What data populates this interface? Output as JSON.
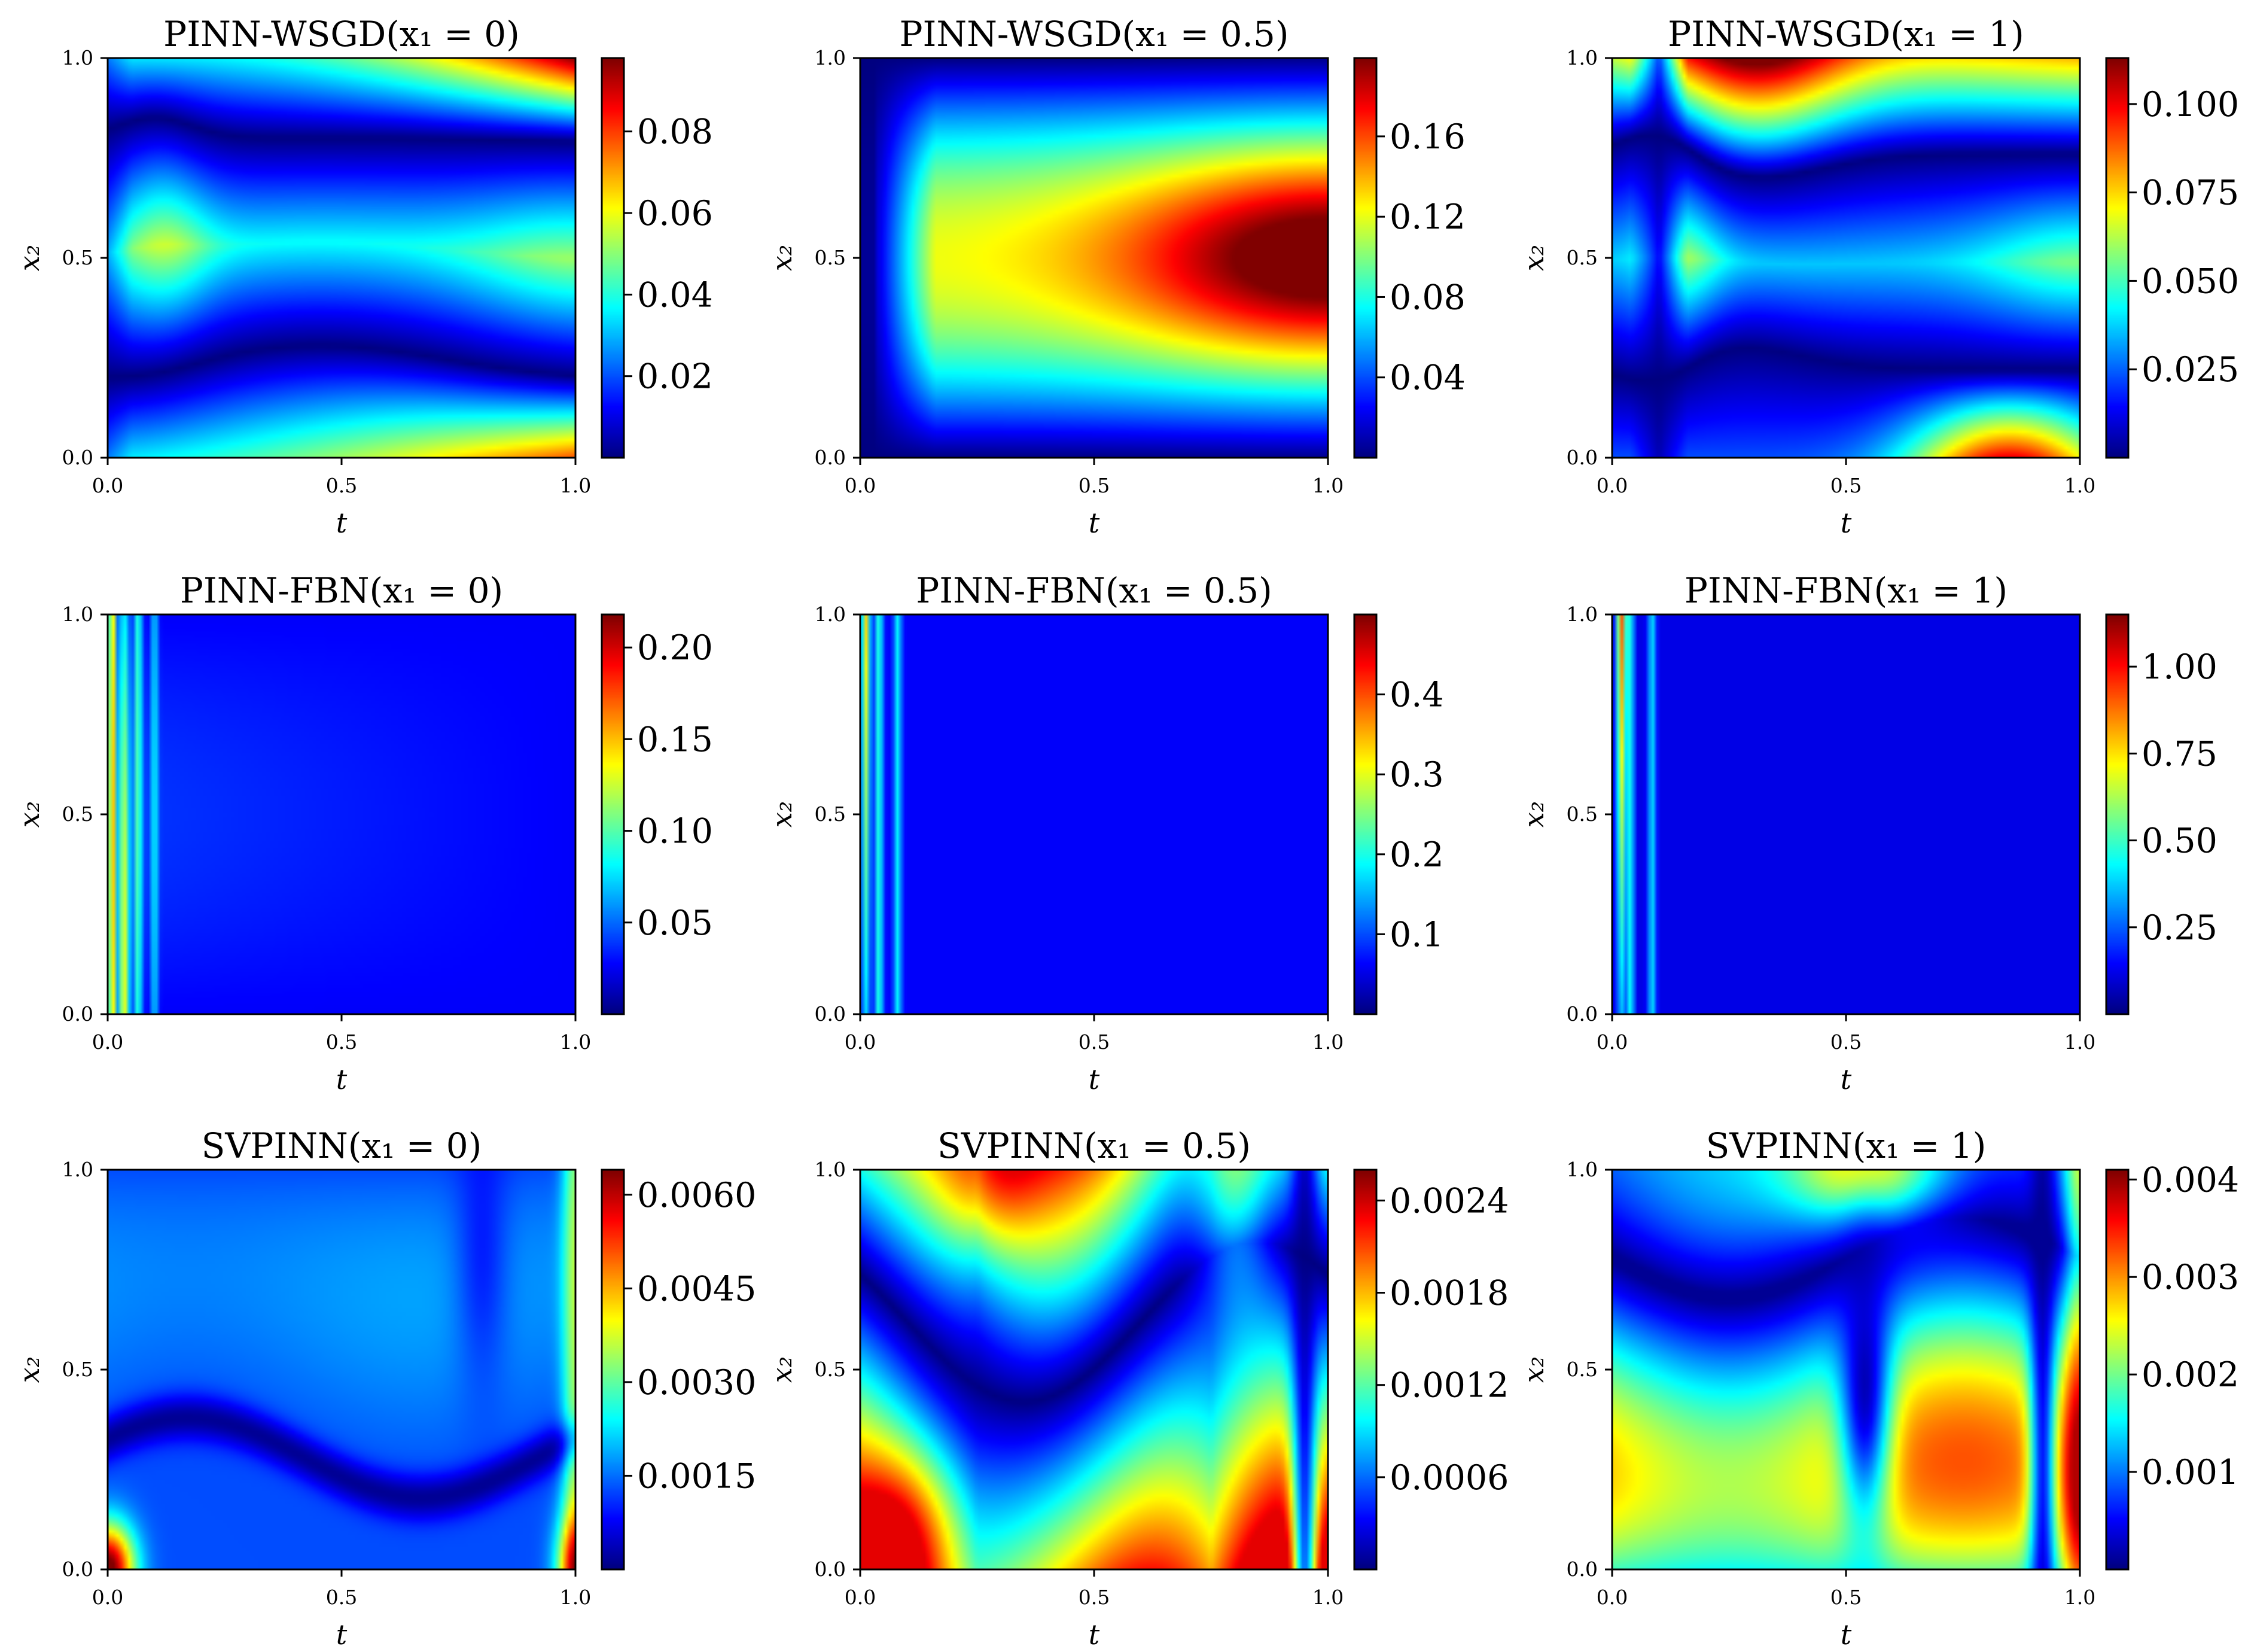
{
  "chart_data": [
    {
      "type": "heatmap",
      "title": "PINN-WSGD(x₁ = 0)",
      "xlabel": "t",
      "ylabel": "x₂",
      "xlim": [
        0,
        1
      ],
      "ylim": [
        0,
        1
      ],
      "xticks": [
        "0.0",
        "0.5",
        "1.0"
      ],
      "yticks": [
        "0.0",
        "0.5",
        "1.0"
      ],
      "colormap": "jet",
      "colorbar": {
        "range": [
          0,
          0.098
        ],
        "ticks": [
          "0.02",
          "0.04",
          "0.06",
          "0.08"
        ]
      },
      "pattern": "wsgd_x0"
    },
    {
      "type": "heatmap",
      "title": "PINN-WSGD(x₁ = 0.5)",
      "xlabel": "t",
      "ylabel": "x₂",
      "xlim": [
        0,
        1
      ],
      "ylim": [
        0,
        1
      ],
      "xticks": [
        "0.0",
        "0.5",
        "1.0"
      ],
      "yticks": [
        "0.0",
        "0.5",
        "1.0"
      ],
      "colormap": "jet",
      "colorbar": {
        "range": [
          0,
          0.199
        ],
        "ticks": [
          "0.04",
          "0.08",
          "0.12",
          "0.16"
        ]
      },
      "pattern": "wsgd_x05"
    },
    {
      "type": "heatmap",
      "title": "PINN-WSGD(x₁ = 1)",
      "xlabel": "t",
      "ylabel": "x₂",
      "xlim": [
        0,
        1
      ],
      "ylim": [
        0,
        1
      ],
      "xticks": [
        "0.0",
        "0.5",
        "1.0"
      ],
      "yticks": [
        "0.0",
        "0.5",
        "1.0"
      ],
      "colormap": "jet",
      "colorbar": {
        "range": [
          0,
          0.113
        ],
        "ticks": [
          "0.025",
          "0.050",
          "0.075",
          "0.100"
        ]
      },
      "pattern": "wsgd_x1"
    },
    {
      "type": "heatmap",
      "title": "PINN-FBN(x₁ = 0)",
      "xlabel": "t",
      "ylabel": "x₂",
      "xlim": [
        0,
        1
      ],
      "ylim": [
        0,
        1
      ],
      "xticks": [
        "0.0",
        "0.5",
        "1.0"
      ],
      "yticks": [
        "0.0",
        "0.5",
        "1.0"
      ],
      "colormap": "jet",
      "colorbar": {
        "range": [
          0,
          0.218
        ],
        "ticks": [
          "0.05",
          "0.10",
          "0.15",
          "0.20"
        ]
      },
      "pattern": "fbn_x0"
    },
    {
      "type": "heatmap",
      "title": "PINN-FBN(x₁ = 0.5)",
      "xlabel": "t",
      "ylabel": "x₂",
      "xlim": [
        0,
        1
      ],
      "ylim": [
        0,
        1
      ],
      "xticks": [
        "0.0",
        "0.5",
        "1.0"
      ],
      "yticks": [
        "0.0",
        "0.5",
        "1.0"
      ],
      "colormap": "jet",
      "colorbar": {
        "range": [
          0,
          0.5
        ],
        "ticks": [
          "0.1",
          "0.2",
          "0.3",
          "0.4"
        ]
      },
      "pattern": "fbn_x05"
    },
    {
      "type": "heatmap",
      "title": "PINN-FBN(x₁ = 1)",
      "xlabel": "t",
      "ylabel": "x₂",
      "xlim": [
        0,
        1
      ],
      "ylim": [
        0,
        1
      ],
      "xticks": [
        "0.0",
        "0.5",
        "1.0"
      ],
      "yticks": [
        "0.0",
        "0.5",
        "1.0"
      ],
      "colormap": "jet",
      "colorbar": {
        "range": [
          0,
          1.15
        ],
        "ticks": [
          "0.25",
          "0.50",
          "0.75",
          "1.00"
        ]
      },
      "pattern": "fbn_x1"
    },
    {
      "type": "heatmap",
      "title": "SVPINN(x₁ = 0)",
      "xlabel": "t",
      "ylabel": "x₂",
      "xlim": [
        0,
        1
      ],
      "ylim": [
        0,
        1
      ],
      "xticks": [
        "0.0",
        "0.5",
        "1.0"
      ],
      "yticks": [
        "0.0",
        "0.5",
        "1.0"
      ],
      "colormap": "jet",
      "colorbar": {
        "range": [
          0,
          0.0064
        ],
        "ticks": [
          "0.0015",
          "0.0030",
          "0.0045",
          "0.0060"
        ]
      },
      "pattern": "sv_x0"
    },
    {
      "type": "heatmap",
      "title": "SVPINN(x₁ = 0.5)",
      "xlabel": "t",
      "ylabel": "x₂",
      "xlim": [
        0,
        1
      ],
      "ylim": [
        0,
        1
      ],
      "xticks": [
        "0.0",
        "0.5",
        "1.0"
      ],
      "yticks": [
        "0.0",
        "0.5",
        "1.0"
      ],
      "colormap": "jet",
      "colorbar": {
        "range": [
          0,
          0.0026
        ],
        "ticks": [
          "0.0006",
          "0.0012",
          "0.0018",
          "0.0024"
        ]
      },
      "pattern": "sv_x05"
    },
    {
      "type": "heatmap",
      "title": "SVPINN(x₁ = 1)",
      "xlabel": "t",
      "ylabel": "x₂",
      "xlim": [
        0,
        1
      ],
      "ylim": [
        0,
        1
      ],
      "xticks": [
        "0.0",
        "0.5",
        "1.0"
      ],
      "yticks": [
        "0.0",
        "0.5",
        "1.0"
      ],
      "colormap": "jet",
      "colorbar": {
        "range": [
          0,
          0.0041
        ],
        "ticks": [
          "0.001",
          "0.002",
          "0.003",
          "0.004"
        ]
      },
      "pattern": "sv_x1"
    }
  ]
}
